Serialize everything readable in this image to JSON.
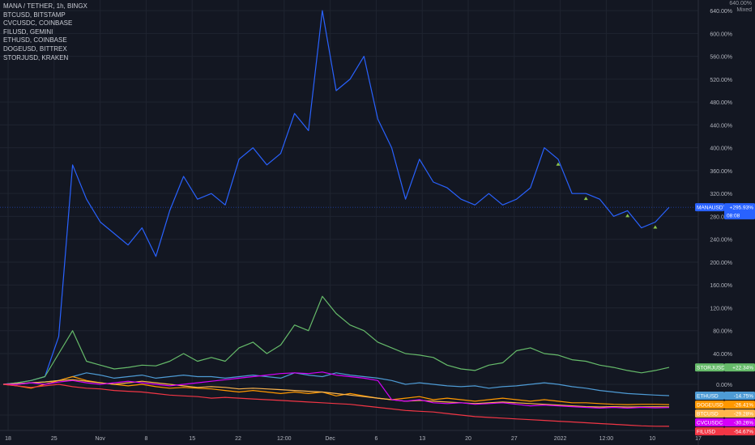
{
  "legend": {
    "title": "MANA / TETHER, 1h, BINGX",
    "items": [
      "BTCUSD, BITSTAMP",
      "CVCUSDC, COINBASE",
      "FILUSD, GEMINI",
      "ETHUSD, COINBASE",
      "DOGEUSD, BITTREX",
      "STORJUSD, KRAKEN"
    ]
  },
  "scale_corner": {
    "line1": "640.00%",
    "line2": "Mixed"
  },
  "chart_data": {
    "type": "line",
    "title": "MANA / TETHER, 1h, BINGX",
    "y_unit": "percent change",
    "ylim": [
      -60,
      650
    ],
    "y_ticks": [
      -40,
      0,
      40,
      80,
      120,
      160,
      200,
      240,
      280,
      320,
      360,
      400,
      440,
      480,
      520,
      560,
      600,
      640
    ],
    "x_ticks": [
      "18",
      "25",
      "Nov",
      "8",
      "15",
      "22",
      "12:00",
      "Dec",
      "6",
      "13",
      "20",
      "27",
      "2022",
      "12:00",
      "10",
      "17"
    ],
    "grid": true,
    "series": [
      {
        "name": "MANAUSDT",
        "color": "#2962ff",
        "last_label": "+295.93%",
        "countdown": "08:08",
        "values": [
          0,
          2,
          5,
          10,
          70,
          370,
          310,
          270,
          250,
          230,
          260,
          210,
          290,
          350,
          310,
          320,
          300,
          380,
          400,
          370,
          390,
          460,
          430,
          640,
          500,
          520,
          560,
          450,
          400,
          310,
          380,
          340,
          330,
          310,
          300,
          320,
          300,
          310,
          330,
          400,
          380,
          320,
          320,
          310,
          280,
          290,
          260,
          270,
          296
        ]
      },
      {
        "name": "STORJUSD",
        "color": "#66bb6a",
        "last_label": "+22.34%",
        "values": [
          0,
          2,
          5,
          10,
          40,
          80,
          30,
          25,
          20,
          22,
          25,
          24,
          30,
          40,
          30,
          35,
          30,
          50,
          60,
          40,
          55,
          90,
          80,
          140,
          110,
          90,
          80,
          60,
          50,
          40,
          38,
          35,
          25,
          20,
          18,
          25,
          28,
          45,
          50,
          40,
          38,
          32,
          30,
          25,
          22,
          18,
          15,
          18,
          22
        ]
      },
      {
        "name": "ETHUSD",
        "color": "#4e9bd5",
        "last_label": "-14.75%",
        "values": [
          0,
          0,
          2,
          3,
          5,
          10,
          15,
          12,
          8,
          10,
          12,
          8,
          10,
          12,
          10,
          10,
          8,
          10,
          12,
          10,
          8,
          15,
          12,
          10,
          15,
          12,
          10,
          8,
          5,
          0,
          2,
          0,
          -2,
          -3,
          -2,
          -5,
          -3,
          -2,
          0,
          2,
          0,
          -3,
          -5,
          -8,
          -10,
          -12,
          -13,
          -14,
          -14.75
        ]
      },
      {
        "name": "DOGEUSD",
        "color": "#ff9800",
        "last_label": "-26.41%",
        "values": [
          0,
          -2,
          -5,
          0,
          5,
          10,
          5,
          2,
          0,
          -2,
          0,
          -3,
          -5,
          -4,
          -5,
          -6,
          -8,
          -10,
          -8,
          -10,
          -12,
          -10,
          -12,
          -10,
          -15,
          -12,
          -15,
          -18,
          -20,
          -18,
          -16,
          -20,
          -18,
          -20,
          -22,
          -20,
          -18,
          -20,
          -22,
          -20,
          -22,
          -24,
          -24,
          -25,
          -26,
          -26.41,
          -26,
          -26,
          -26.41
        ]
      },
      {
        "name": "BTCUSD",
        "color": "#ffb74d",
        "last_label": "-29.28%",
        "values": [
          0,
          1,
          2,
          3,
          5,
          6,
          4,
          2,
          0,
          2,
          4,
          2,
          0,
          -2,
          -4,
          -3,
          -4,
          -6,
          -5,
          -6,
          -7,
          -8,
          -9,
          -10,
          -12,
          -14,
          -16,
          -18,
          -20,
          -22,
          -21,
          -22,
          -23,
          -24,
          -25,
          -24,
          -23,
          -24,
          -25,
          -26,
          -27,
          -28,
          -29,
          -29.5,
          -29,
          -29.5,
          -29.3,
          -29.2,
          -29.28
        ]
      },
      {
        "name": "CVCUSDC",
        "color": "#d500f9",
        "last_label": "-30.26%",
        "values": [
          0,
          0,
          2,
          0,
          3,
          5,
          2,
          0,
          2,
          4,
          2,
          0,
          -2,
          0,
          2,
          4,
          6,
          8,
          10,
          12,
          14,
          15,
          14,
          16,
          12,
          10,
          8,
          5,
          -20,
          -22,
          -20,
          -24,
          -25,
          -24,
          -26,
          -25,
          -24,
          -26,
          -28,
          -27,
          -28,
          -29,
          -30,
          -31,
          -30,
          -31,
          -30,
          -30.5,
          -30.26
        ]
      },
      {
        "name": "FILUSD",
        "color": "#f23645",
        "last_label": "-54.67%",
        "values": [
          0,
          -2,
          -4,
          -2,
          0,
          -3,
          -5,
          -6,
          -8,
          -9,
          -10,
          -12,
          -14,
          -15,
          -16,
          -18,
          -17,
          -18,
          -19,
          -20,
          -21,
          -22,
          -23,
          -24,
          -25,
          -26,
          -28,
          -30,
          -32,
          -34,
          -35,
          -36,
          -38,
          -40,
          -42,
          -43,
          -44,
          -45,
          -46,
          -47,
          -48,
          -49,
          -50,
          -51,
          -52,
          -53,
          -54,
          -54.5,
          -54.67
        ]
      }
    ],
    "markers": [
      {
        "series": "MANAUSDT",
        "index": 40
      },
      {
        "series": "MANAUSDT",
        "index": 42
      },
      {
        "series": "MANAUSDT",
        "index": 45
      },
      {
        "series": "MANAUSDT",
        "index": 47
      }
    ]
  },
  "colors": {
    "background": "#131722",
    "grid": "#1f2430",
    "axis_text": "#b2b5be"
  }
}
